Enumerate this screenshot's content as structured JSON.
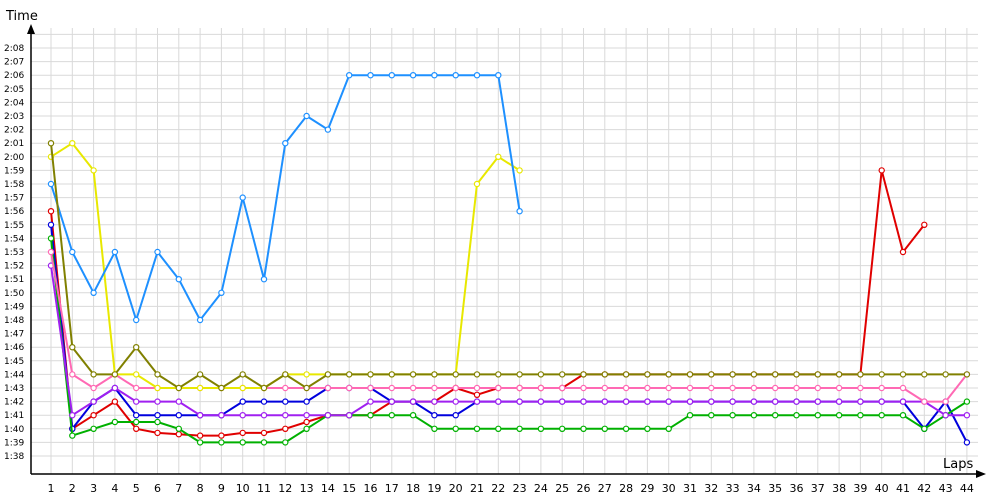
{
  "chart_data": {
    "type": "line",
    "title": "",
    "xlabel": "Laps",
    "ylabel": "Time",
    "x": [
      1,
      2,
      3,
      4,
      5,
      6,
      7,
      8,
      9,
      10,
      11,
      12,
      13,
      14,
      15,
      16,
      17,
      18,
      19,
      20,
      21,
      22,
      23,
      24,
      25,
      26,
      27,
      28,
      29,
      30,
      31,
      32,
      33,
      34,
      35,
      36,
      37,
      38,
      39,
      40,
      41,
      42,
      43,
      44
    ],
    "xlim": [
      1,
      44
    ],
    "ylim_seconds": [
      98,
      130
    ],
    "y_ticks": [
      "1:38",
      "1:39",
      "1:40",
      "1:41",
      "1:42",
      "1:43",
      "1:44",
      "1:45",
      "1:46",
      "1:47",
      "1:48",
      "1:49",
      "1:50",
      "1:51",
      "1:52",
      "1:53",
      "1:54",
      "1:55",
      "1:56",
      "1:57",
      "1:58",
      "1:59",
      "2:00",
      "2:01",
      "2:02",
      "2:03",
      "2:04",
      "2:05",
      "2:06",
      "2:07",
      "2:08"
    ],
    "grid": true,
    "legend": "none",
    "series": [
      {
        "color": "#e00000",
        "values": [
          116,
          100,
          101,
          102,
          100,
          99.7,
          99.6,
          99.5,
          99.5,
          99.7,
          99.7,
          100,
          100.5,
          101,
          101,
          101,
          102,
          102,
          102,
          103,
          102.5,
          103,
          103,
          103,
          103,
          104,
          104,
          104,
          104,
          104,
          104,
          104,
          104,
          104,
          104,
          104,
          104,
          104,
          104,
          119,
          113,
          115,
          null,
          null
        ]
      },
      {
        "color": "#0000dd",
        "values": [
          115,
          100,
          102,
          103,
          101,
          101,
          101,
          101,
          101,
          102,
          102,
          102,
          102,
          103,
          103,
          103,
          102,
          102,
          101,
          101,
          102,
          102,
          102,
          102,
          102,
          102,
          102,
          102,
          102,
          102,
          102,
          102,
          102,
          102,
          102,
          102,
          102,
          102,
          102,
          102,
          102,
          100,
          102,
          99
        ]
      },
      {
        "color": "#00b000",
        "values": [
          114,
          99.5,
          100,
          100.5,
          100.5,
          100.5,
          100,
          99,
          99,
          99,
          99,
          99,
          100,
          101,
          101,
          101,
          101,
          101,
          100,
          100,
          100,
          100,
          100,
          100,
          100,
          100,
          100,
          100,
          100,
          100,
          101,
          101,
          101,
          101,
          101,
          101,
          101,
          101,
          101,
          101,
          101,
          100,
          101,
          102
        ]
      },
      {
        "color": "#a020f0",
        "values": [
          112,
          101,
          102,
          103,
          102,
          102,
          102,
          101,
          101,
          101,
          101,
          101,
          101,
          101,
          101,
          102,
          102,
          102,
          102,
          102,
          102,
          102,
          102,
          102,
          102,
          102,
          102,
          102,
          102,
          102,
          102,
          102,
          102,
          102,
          102,
          102,
          102,
          102,
          102,
          102,
          102,
          102,
          101,
          101
        ]
      },
      {
        "color": "#ff69b4",
        "values": [
          113,
          104,
          103,
          104,
          103,
          103,
          103,
          103,
          103,
          103,
          103,
          103,
          103,
          103,
          103,
          103,
          103,
          103,
          103,
          103,
          103,
          103,
          103,
          103,
          103,
          103,
          103,
          103,
          103,
          103,
          103,
          103,
          103,
          103,
          103,
          103,
          103,
          103,
          103,
          103,
          103,
          102,
          102,
          104
        ]
      },
      {
        "color": "#e8e800",
        "values": [
          120,
          121,
          119,
          104,
          104,
          103,
          103,
          103,
          103,
          103,
          103,
          104,
          104,
          104,
          104,
          104,
          104,
          104,
          104,
          104,
          118,
          120,
          119,
          null,
          null,
          null,
          null,
          null,
          null,
          null,
          null,
          null,
          null,
          null,
          null,
          null,
          null,
          null,
          null,
          null,
          null,
          null,
          null,
          null
        ]
      },
      {
        "color": "#1e90ff",
        "values": [
          118,
          113,
          110,
          113,
          108,
          113,
          111,
          108,
          110,
          117,
          111,
          121,
          123,
          122,
          126,
          126,
          126,
          126,
          126,
          126,
          126,
          126,
          116,
          null,
          null,
          null,
          null,
          null,
          null,
          null,
          null,
          null,
          null,
          null,
          null,
          null,
          null,
          null,
          null,
          null,
          null,
          null,
          null,
          null
        ]
      },
      {
        "color": "#808000",
        "values": [
          121,
          106,
          104,
          104,
          106,
          104,
          103,
          104,
          103,
          104,
          103,
          104,
          103,
          104,
          104,
          104,
          104,
          104,
          104,
          104,
          104,
          104,
          104,
          104,
          104,
          104,
          104,
          104,
          104,
          104,
          104,
          104,
          104,
          104,
          104,
          104,
          104,
          104,
          104,
          104,
          104,
          104,
          104,
          104
        ]
      }
    ]
  }
}
